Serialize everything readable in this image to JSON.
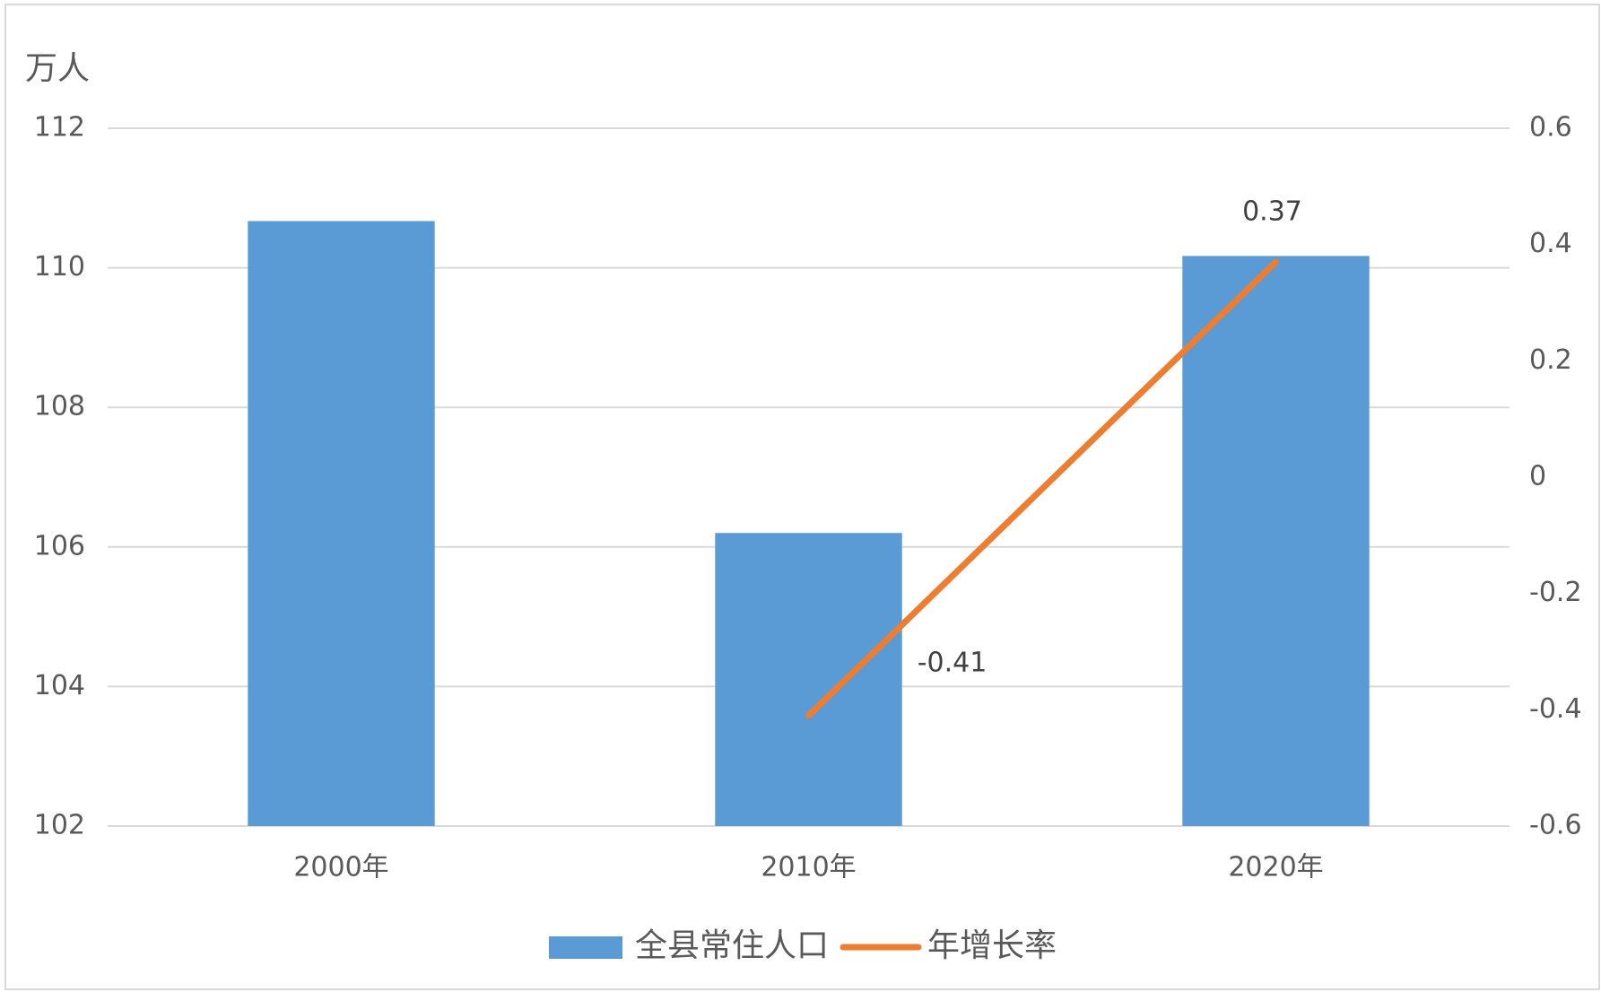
{
  "chart_data": {
    "type": "bar-line",
    "y_unit_label": "万人",
    "categories": [
      "2000年",
      "2010年",
      "2020年"
    ],
    "series": [
      {
        "name": "全县常住人口",
        "type": "bar",
        "color": "#5b9bd5",
        "values": [
          110.67,
          106.2,
          110.17
        ]
      },
      {
        "name": "年增长率",
        "type": "line",
        "color": "#ed7d31",
        "axis": "y2",
        "values": [
          null,
          -0.41,
          0.37
        ],
        "show_labels": true
      }
    ],
    "ylim": [
      102,
      112
    ],
    "yticks": [
      102,
      104,
      106,
      108,
      110,
      112
    ],
    "y2lim": [
      -0.6,
      0.6
    ],
    "y2ticks": [
      -0.6,
      -0.4,
      -0.2,
      0,
      0.2,
      0.4,
      0.6
    ],
    "grid": true,
    "legend": "bottom"
  }
}
